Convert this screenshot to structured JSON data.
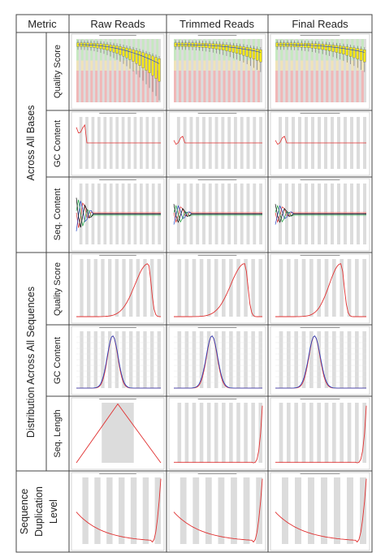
{
  "table": {
    "header": {
      "metric": "Metric",
      "columns": [
        "Raw Reads",
        "Trimmed Reads",
        "Final Reads"
      ]
    },
    "groups": [
      {
        "label": "Across All Bases",
        "rows": [
          "Quality Score",
          "GC Content",
          "Seq. Content"
        ]
      },
      {
        "label": "Distribution Across All Sequences",
        "rows": [
          "Quality Score",
          "GC Content",
          "Seq. Length"
        ]
      },
      {
        "label_lines": [
          "Sequence",
          "Duplication",
          "Level"
        ]
      }
    ]
  },
  "colors": {
    "quality_good": "#c6e8c0",
    "quality_ok": "#efe3b8",
    "quality_bad": "#f0b7b7",
    "box_fill": "#f5e818",
    "line_red": "#e03030",
    "line_blue": "#2040c0",
    "line_green": "#20a040",
    "stripe": "#dcdcdc",
    "border": "#444444"
  }
}
